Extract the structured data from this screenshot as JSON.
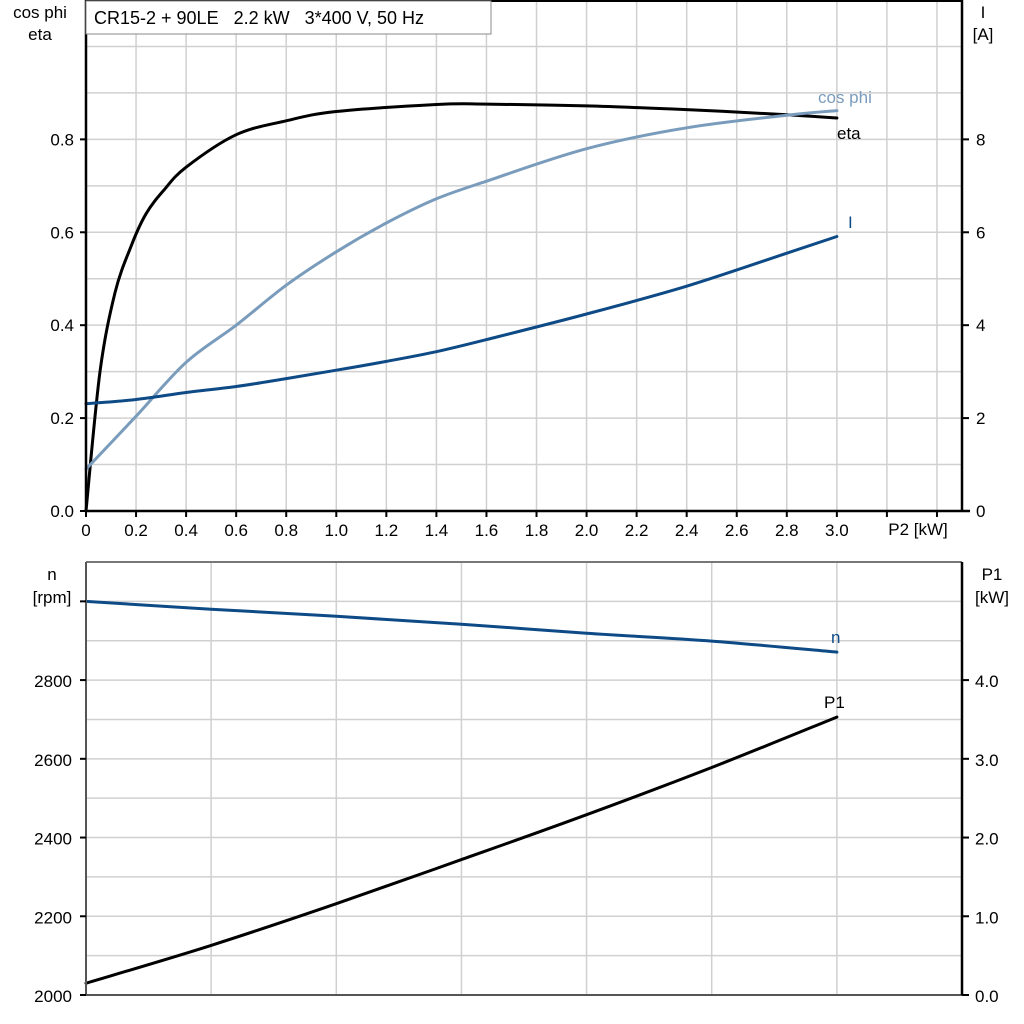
{
  "chart_data": [
    {
      "type": "line",
      "title": "CR15-2 + 90LE   2.2 kW   3*400 V, 50 Hz",
      "xlabel": "P2 [kW]",
      "ylabel_left": [
        "cos phi",
        "eta"
      ],
      "ylabel_right": [
        "I",
        "[A]"
      ],
      "xlim": [
        0,
        3.5
      ],
      "ylim_left": [
        0,
        1.1
      ],
      "ylim_right": [
        0,
        11
      ],
      "x_ticks": [
        "0",
        "0.2",
        "0.4",
        "0.6",
        "0.8",
        "1.0",
        "1.2",
        "1.4",
        "1.6",
        "1.8",
        "2.0",
        "2.2",
        "2.4",
        "2.6",
        "2.8",
        "3.0"
      ],
      "y_ticks_left": [
        "0.0",
        "0.2",
        "0.4",
        "0.6",
        "0.8"
      ],
      "y_ticks_right": [
        "0",
        "2",
        "4",
        "6",
        "8"
      ],
      "grid": true,
      "series": [
        {
          "name": "eta",
          "axis": "left",
          "color": "#000000",
          "x": [
            0,
            0.056,
            0.116,
            0.18,
            0.24,
            0.31,
            0.4,
            0.6,
            0.8,
            1.0,
            1.4,
            1.6,
            2.0,
            2.4,
            2.8,
            3.0
          ],
          "y": [
            0,
            0.3,
            0.47,
            0.57,
            0.64,
            0.69,
            0.74,
            0.81,
            0.84,
            0.86,
            0.875,
            0.876,
            0.872,
            0.864,
            0.853,
            0.846
          ]
        },
        {
          "name": "cos phi",
          "axis": "left",
          "color": "#7a9cbc",
          "x": [
            0,
            0.2,
            0.4,
            0.6,
            0.8,
            1.0,
            1.2,
            1.4,
            1.6,
            2.0,
            2.4,
            2.8,
            3.0
          ],
          "y": [
            0.09,
            0.204,
            0.32,
            0.4,
            0.486,
            0.558,
            0.62,
            0.672,
            0.71,
            0.78,
            0.825,
            0.852,
            0.862
          ]
        },
        {
          "name": "I",
          "axis": "right",
          "color": "#0d4a86",
          "x": [
            0,
            0.2,
            0.4,
            0.6,
            0.8,
            1.0,
            1.2,
            1.4,
            1.6,
            2.0,
            2.4,
            2.8,
            3.0
          ],
          "y": [
            2.31,
            2.4,
            2.55,
            2.68,
            2.85,
            3.03,
            3.22,
            3.43,
            3.69,
            4.24,
            4.84,
            5.55,
            5.91
          ]
        }
      ]
    },
    {
      "type": "line",
      "xlim": [
        0,
        3.5
      ],
      "ylabel_left": [
        "n",
        "[rpm]"
      ],
      "ylabel_right": [
        "P1",
        "[kW]"
      ],
      "ylim_left": [
        2000,
        3100
      ],
      "ylim_right": [
        0,
        5.5
      ],
      "y_ticks_left": [
        "2000",
        "2200",
        "2400",
        "2600",
        "2800"
      ],
      "y_ticks_right": [
        "0.0",
        "1.0",
        "2.0",
        "3.0",
        "4.0"
      ],
      "grid": true,
      "series": [
        {
          "name": "n",
          "axis": "left",
          "color": "#0d4a86",
          "x": [
            0,
            0.5,
            1.0,
            1.5,
            2.0,
            2.5,
            3.0
          ],
          "y": [
            3000,
            2980,
            2962,
            2942,
            2919,
            2899,
            2871
          ]
        },
        {
          "name": "P1",
          "axis": "right",
          "color": "#000000",
          "x": [
            0,
            0.5,
            1.0,
            1.5,
            2.0,
            2.5,
            3.0
          ],
          "y": [
            0.15,
            0.63,
            1.16,
            1.72,
            2.29,
            2.89,
            3.53
          ]
        }
      ]
    }
  ]
}
